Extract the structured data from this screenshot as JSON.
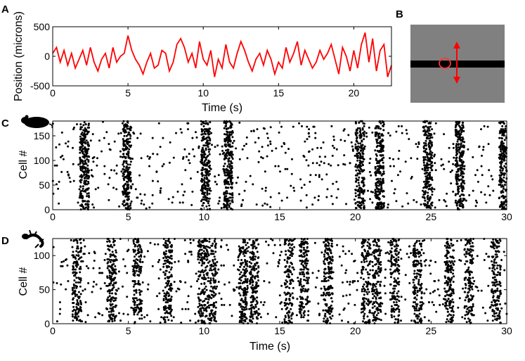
{
  "panels": {
    "a": "A",
    "b": "B",
    "c": "C",
    "d": "D"
  },
  "colors": {
    "trace": "#ff0000",
    "stimulus_bg": "#808080",
    "bar": "#000000",
    "spike": "#000000"
  },
  "icons": {
    "c": "mouse-silhouette-icon",
    "d": "salamander-silhouette-icon"
  },
  "chart_data": [
    {
      "type": "line",
      "panel": "A",
      "xlabel": "Time (s)",
      "ylabel": "Position (microns)",
      "xlim": [
        0,
        22.5
      ],
      "ylim": [
        -500,
        500
      ],
      "xticks": [
        0,
        5,
        10,
        15,
        20
      ],
      "yticks": [
        -500,
        0,
        500
      ],
      "series": [
        {
          "x": [
            0,
            0.25,
            0.5,
            0.75,
            1,
            1.25,
            1.5,
            1.75,
            2,
            2.25,
            2.5,
            2.75,
            3,
            3.25,
            3.5,
            3.75,
            4,
            4.25,
            4.5,
            4.75,
            5,
            5.25,
            5.5,
            5.75,
            6,
            6.25,
            6.5,
            6.75,
            7,
            7.25,
            7.5,
            7.75,
            8,
            8.25,
            8.5,
            8.75,
            9,
            9.25,
            9.5,
            9.75,
            10,
            10.25,
            10.5,
            10.75,
            11,
            11.25,
            11.5,
            11.75,
            12,
            12.25,
            12.5,
            12.75,
            13,
            13.25,
            13.5,
            13.75,
            14,
            14.25,
            14.5,
            14.75,
            15,
            15.25,
            15.5,
            15.75,
            16,
            16.25,
            16.5,
            16.75,
            17,
            17.25,
            17.5,
            17.75,
            18,
            18.25,
            18.5,
            18.75,
            19,
            19.25,
            19.5,
            19.75,
            20,
            20.25,
            20.5,
            20.75,
            21,
            21.25,
            21.5,
            21.75,
            22,
            22.25,
            22.5
          ],
          "y": [
            50,
            150,
            -100,
            100,
            -150,
            50,
            -200,
            -50,
            100,
            -150,
            150,
            -100,
            -250,
            -50,
            50,
            -200,
            150,
            -100,
            0,
            50,
            350,
            100,
            -50,
            -150,
            -300,
            -100,
            50,
            -200,
            -150,
            100,
            50,
            -250,
            -100,
            200,
            300,
            150,
            -100,
            50,
            -200,
            250,
            -50,
            -150,
            100,
            -350,
            -50,
            -200,
            200,
            -100,
            -200,
            50,
            250,
            100,
            -100,
            -250,
            -50,
            50,
            -150,
            100,
            -50,
            -300,
            -100,
            -200,
            150,
            -100,
            50,
            250,
            -150,
            100,
            -50,
            -200,
            -100,
            100,
            -50,
            50,
            200,
            -50,
            -300,
            150,
            0,
            -250,
            100,
            -200,
            200,
            400,
            -100,
            300,
            -250,
            100,
            200,
            -350,
            -150
          ]
        }
      ]
    },
    {
      "type": "scatter",
      "panel": "C",
      "xlabel": "",
      "ylabel": "Cell #",
      "xlim": [
        0,
        30
      ],
      "ylim": [
        0,
        180
      ],
      "xticks": [
        0,
        5,
        10,
        15,
        20,
        25,
        30
      ],
      "yticks": [
        0,
        50,
        100,
        150
      ],
      "n_cells": 180,
      "burst_times": [
        2.1,
        4.9,
        10.1,
        11.6,
        20.3,
        21.6,
        24.8,
        26.9,
        29.8
      ],
      "note": "spike raster"
    },
    {
      "type": "scatter",
      "panel": "D",
      "xlabel": "Time (s)",
      "ylabel": "Cell #",
      "xlim": [
        0,
        30
      ],
      "ylim": [
        0,
        125
      ],
      "xticks": [
        0,
        5,
        10,
        15,
        20,
        25,
        30
      ],
      "yticks": [
        0,
        50,
        100
      ],
      "n_cells": 125,
      "burst_times": [
        1.6,
        3.9,
        5.6,
        7.6,
        9.9,
        10.5,
        12.6,
        13.3,
        15.6,
        16.6,
        18.2,
        20.7,
        21.4,
        22.6,
        24.1,
        26.2,
        27.5,
        29.3
      ],
      "note": "spike raster"
    }
  ]
}
